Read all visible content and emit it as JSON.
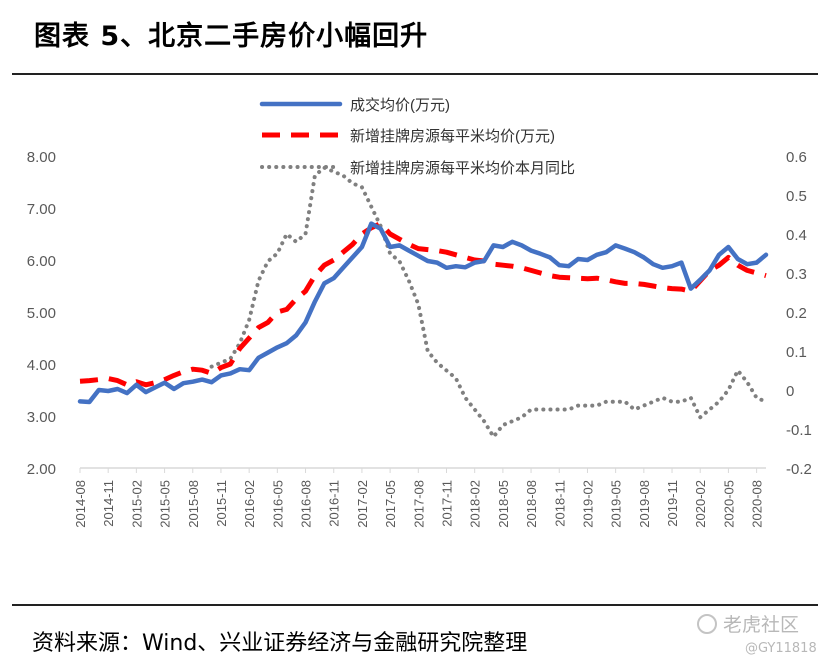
{
  "title": "图表 5、北京二手房价小幅回升",
  "source": "资料来源：Wind、兴业证券经济与金融研究院整理",
  "watermark": {
    "text": "老虎社区",
    "handle": "@GY11818",
    "icon": "tiger-logo-icon"
  },
  "colors": {
    "series1": "#4472C4",
    "series2": "#FF0000",
    "series3": "#808080",
    "axis": "#D9D9D9",
    "text": "#595959"
  },
  "chart_data": {
    "type": "line",
    "title": "图表 5、北京二手房价小幅回升",
    "legend_position": "top-center",
    "grid": false,
    "y_left": {
      "ylim": [
        2.0,
        8.0
      ],
      "ticks": [
        "2.00",
        "3.00",
        "4.00",
        "5.00",
        "6.00",
        "7.00",
        "8.00"
      ]
    },
    "y_right": {
      "ylim": [
        -0.2,
        0.6
      ],
      "ticks": [
        "-0.2",
        "-0.1",
        "0",
        "0.1",
        "0.2",
        "0.3",
        "0.4",
        "0.5",
        "0.6"
      ]
    },
    "x_tick_labels": [
      "2014-08",
      "2014-11",
      "2015-02",
      "2015-05",
      "2015-08",
      "2015-11",
      "2016-02",
      "2016-05",
      "2016-08",
      "2016-11",
      "2017-02",
      "2017-05",
      "2017-08",
      "2017-11",
      "2018-02",
      "2018-05",
      "2018-08",
      "2018-11",
      "2019-02",
      "2019-05",
      "2019-08",
      "2019-11",
      "2020-02",
      "2020-05",
      "2020-08"
    ],
    "x": [
      "2014-08",
      "2014-09",
      "2014-10",
      "2014-11",
      "2014-12",
      "2015-01",
      "2015-02",
      "2015-03",
      "2015-04",
      "2015-05",
      "2015-06",
      "2015-07",
      "2015-08",
      "2015-09",
      "2015-10",
      "2015-11",
      "2015-12",
      "2016-01",
      "2016-02",
      "2016-03",
      "2016-04",
      "2016-05",
      "2016-06",
      "2016-07",
      "2016-08",
      "2016-09",
      "2016-10",
      "2016-11",
      "2016-12",
      "2017-01",
      "2017-02",
      "2017-03",
      "2017-04",
      "2017-05",
      "2017-06",
      "2017-07",
      "2017-08",
      "2017-09",
      "2017-10",
      "2017-11",
      "2017-12",
      "2018-01",
      "2018-02",
      "2018-03",
      "2018-04",
      "2018-05",
      "2018-06",
      "2018-07",
      "2018-08",
      "2018-09",
      "2018-10",
      "2018-11",
      "2018-12",
      "2019-01",
      "2019-02",
      "2019-03",
      "2019-04",
      "2019-05",
      "2019-06",
      "2019-07",
      "2019-08",
      "2019-09",
      "2019-10",
      "2019-11",
      "2019-12",
      "2020-01",
      "2020-02",
      "2020-03",
      "2020-04",
      "2020-05",
      "2020-06",
      "2020-07",
      "2020-08",
      "2020-09"
    ],
    "series": [
      {
        "name": "成交均价(万元)",
        "axis": "left",
        "style": "solid",
        "values": [
          3.28,
          3.27,
          3.5,
          3.48,
          3.52,
          3.44,
          3.6,
          3.46,
          3.55,
          3.64,
          3.52,
          3.63,
          3.66,
          3.7,
          3.65,
          3.78,
          3.82,
          3.9,
          3.88,
          4.12,
          4.22,
          4.32,
          4.4,
          4.55,
          4.8,
          5.2,
          5.55,
          5.65,
          5.85,
          6.05,
          6.25,
          6.7,
          6.6,
          6.25,
          6.28,
          6.18,
          6.08,
          5.98,
          5.95,
          5.85,
          5.88,
          5.86,
          5.95,
          5.98,
          6.28,
          6.25,
          6.35,
          6.28,
          6.18,
          6.12,
          6.05,
          5.9,
          5.88,
          6.02,
          6.0,
          6.1,
          6.15,
          6.28,
          6.22,
          6.15,
          6.05,
          5.92,
          5.85,
          5.88,
          5.95,
          5.45,
          5.62,
          5.8,
          6.1,
          6.25,
          6.02,
          5.92,
          5.95,
          6.1
        ]
      },
      {
        "name": "新增挂牌房源每平米均价(万元)",
        "axis": "left",
        "style": "dashed",
        "values": [
          3.67,
          3.68,
          3.7,
          3.72,
          3.68,
          3.6,
          3.66,
          3.6,
          3.64,
          3.7,
          3.78,
          3.85,
          3.9,
          3.88,
          3.82,
          3.93,
          4.0,
          4.3,
          4.5,
          4.7,
          4.8,
          5.0,
          5.05,
          5.25,
          5.4,
          5.7,
          5.9,
          6.0,
          6.15,
          6.3,
          6.5,
          6.62,
          6.7,
          6.5,
          6.4,
          6.3,
          6.22,
          6.2,
          6.18,
          6.15,
          6.1,
          6.05,
          6.0,
          5.98,
          5.92,
          5.9,
          5.88,
          5.85,
          5.8,
          5.75,
          5.7,
          5.67,
          5.66,
          5.65,
          5.64,
          5.65,
          5.62,
          5.58,
          5.55,
          5.55,
          5.53,
          5.5,
          5.47,
          5.45,
          5.44,
          5.4,
          5.6,
          5.8,
          5.9,
          6.05,
          5.9,
          5.8,
          5.75,
          5.7
        ]
      },
      {
        "name": "新增挂牌房源每平米均价本月同比",
        "axis": "right",
        "style": "dotted",
        "values": [
          null,
          null,
          null,
          null,
          null,
          null,
          null,
          null,
          null,
          null,
          null,
          null,
          null,
          null,
          0.06,
          0.07,
          0.08,
          0.12,
          0.18,
          0.28,
          0.33,
          0.35,
          0.4,
          0.38,
          0.4,
          0.55,
          0.57,
          0.56,
          0.55,
          0.53,
          0.52,
          0.47,
          0.42,
          0.35,
          0.33,
          0.28,
          0.22,
          0.1,
          0.07,
          0.05,
          0.03,
          -0.02,
          -0.05,
          -0.08,
          -0.12,
          -0.09,
          -0.08,
          -0.07,
          -0.05,
          -0.05,
          -0.05,
          -0.05,
          -0.05,
          -0.04,
          -0.04,
          -0.04,
          -0.03,
          -0.03,
          -0.03,
          -0.05,
          -0.04,
          -0.03,
          -0.02,
          -0.03,
          -0.03,
          -0.02,
          -0.07,
          -0.05,
          -0.03,
          0.0,
          0.05,
          0.02,
          -0.02,
          -0.03
        ]
      }
    ]
  }
}
